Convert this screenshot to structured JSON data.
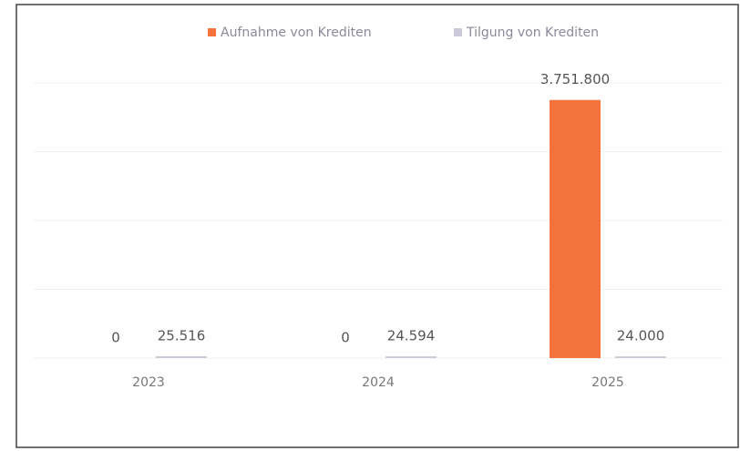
{
  "chart_data": {
    "type": "bar",
    "categories": [
      "2023",
      "2024",
      "2025"
    ],
    "series": [
      {
        "name": "Aufnahme von Krediten",
        "color": "#f4733c",
        "values": [
          0,
          0,
          3751800
        ],
        "value_labels": [
          "0",
          "0",
          "3.751.800"
        ]
      },
      {
        "name": "Tilgung von Krediten",
        "color": "#c9c9d9",
        "values": [
          25516,
          24594,
          24000
        ],
        "value_labels": [
          "25.516",
          "24.594",
          "24.000"
        ]
      }
    ],
    "ylim": [
      0,
      4000000
    ],
    "yticks": [
      0,
      1000000,
      2000000,
      3000000,
      4000000
    ],
    "grid": true,
    "legend": "top"
  }
}
